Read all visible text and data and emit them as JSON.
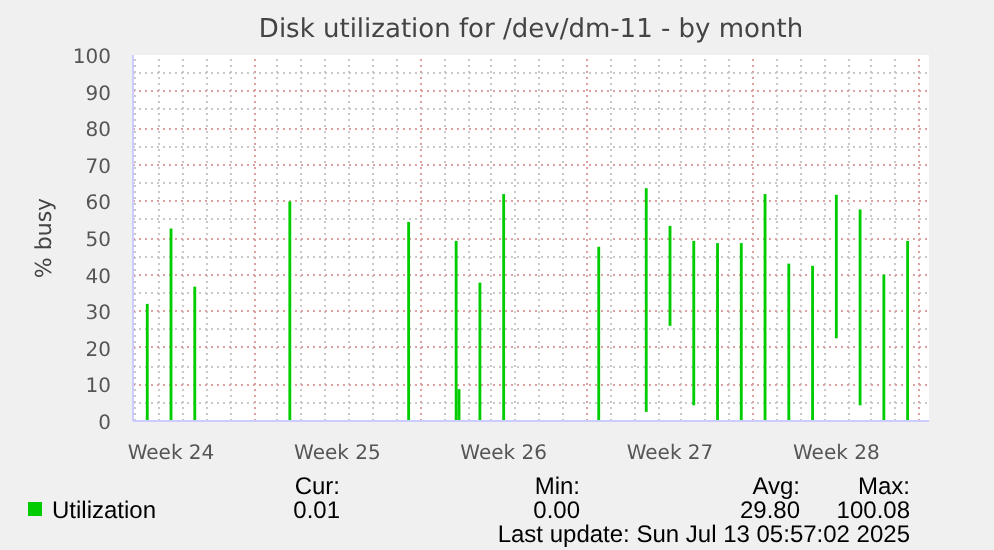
{
  "chart_data": {
    "type": "bar",
    "title": "Disk utilization for /dev/dm-11 - by month",
    "ylabel": "% busy",
    "categories": [
      null,
      "Week 24",
      null,
      null,
      null,
      null,
      null,
      null,
      "Week 25",
      null,
      null,
      null,
      null,
      null,
      null,
      "Week 26",
      null,
      null,
      null,
      null,
      null,
      null,
      "Week 27",
      null,
      null,
      null,
      null,
      null,
      null,
      "Week 28",
      null,
      null,
      null
    ],
    "series": [
      {
        "name": "Utilization",
        "color": "#00cc00",
        "base": [
          0,
          0,
          0,
          null,
          null,
          null,
          0,
          null,
          null,
          null,
          null,
          0,
          null,
          0,
          0,
          0,
          null,
          null,
          null,
          0,
          null,
          2.5,
          26,
          4.3,
          0,
          0,
          0,
          0,
          0,
          22.6,
          4.3,
          0,
          0
        ],
        "values": [
          32,
          52.6,
          36.7,
          null,
          null,
          null,
          60,
          null,
          null,
          null,
          null,
          54.4,
          null,
          49.2,
          37.8,
          62,
          null,
          null,
          null,
          47.6,
          null,
          61.1,
          27.3,
          44.9,
          48.6,
          48.6,
          62,
          43,
          42.4,
          39.2,
          53.5,
          40,
          49.2
        ]
      },
      {
        "color": "#00cc00",
        "base": [
          null,
          null,
          null,
          null,
          null,
          null,
          null,
          null,
          null,
          null,
          null,
          null,
          null,
          0,
          null,
          null,
          null,
          null,
          null,
          null,
          null,
          null,
          null,
          null,
          null,
          null,
          null,
          null,
          null,
          null,
          null,
          null,
          null
        ],
        "values": [
          null,
          null,
          null,
          null,
          null,
          null,
          null,
          null,
          null,
          null,
          null,
          null,
          null,
          8.7,
          null,
          null,
          null,
          null,
          null,
          null,
          null,
          null,
          null,
          null,
          null,
          null,
          null,
          null,
          null,
          null,
          null,
          null,
          null
        ]
      }
    ],
    "ylim": [
      0,
      100
    ],
    "yticks": [
      0,
      10,
      20,
      30,
      40,
      50,
      60,
      70,
      80,
      90,
      100
    ],
    "grid": true,
    "legend": "bottom",
    "annotations": [
      "Cur:",
      "Min:",
      "Avg:",
      "Max:",
      "0.01",
      "0.00",
      "29.80",
      "100.08",
      "Last update: Sun Jul 13 05:57:02 2025"
    ]
  }
}
